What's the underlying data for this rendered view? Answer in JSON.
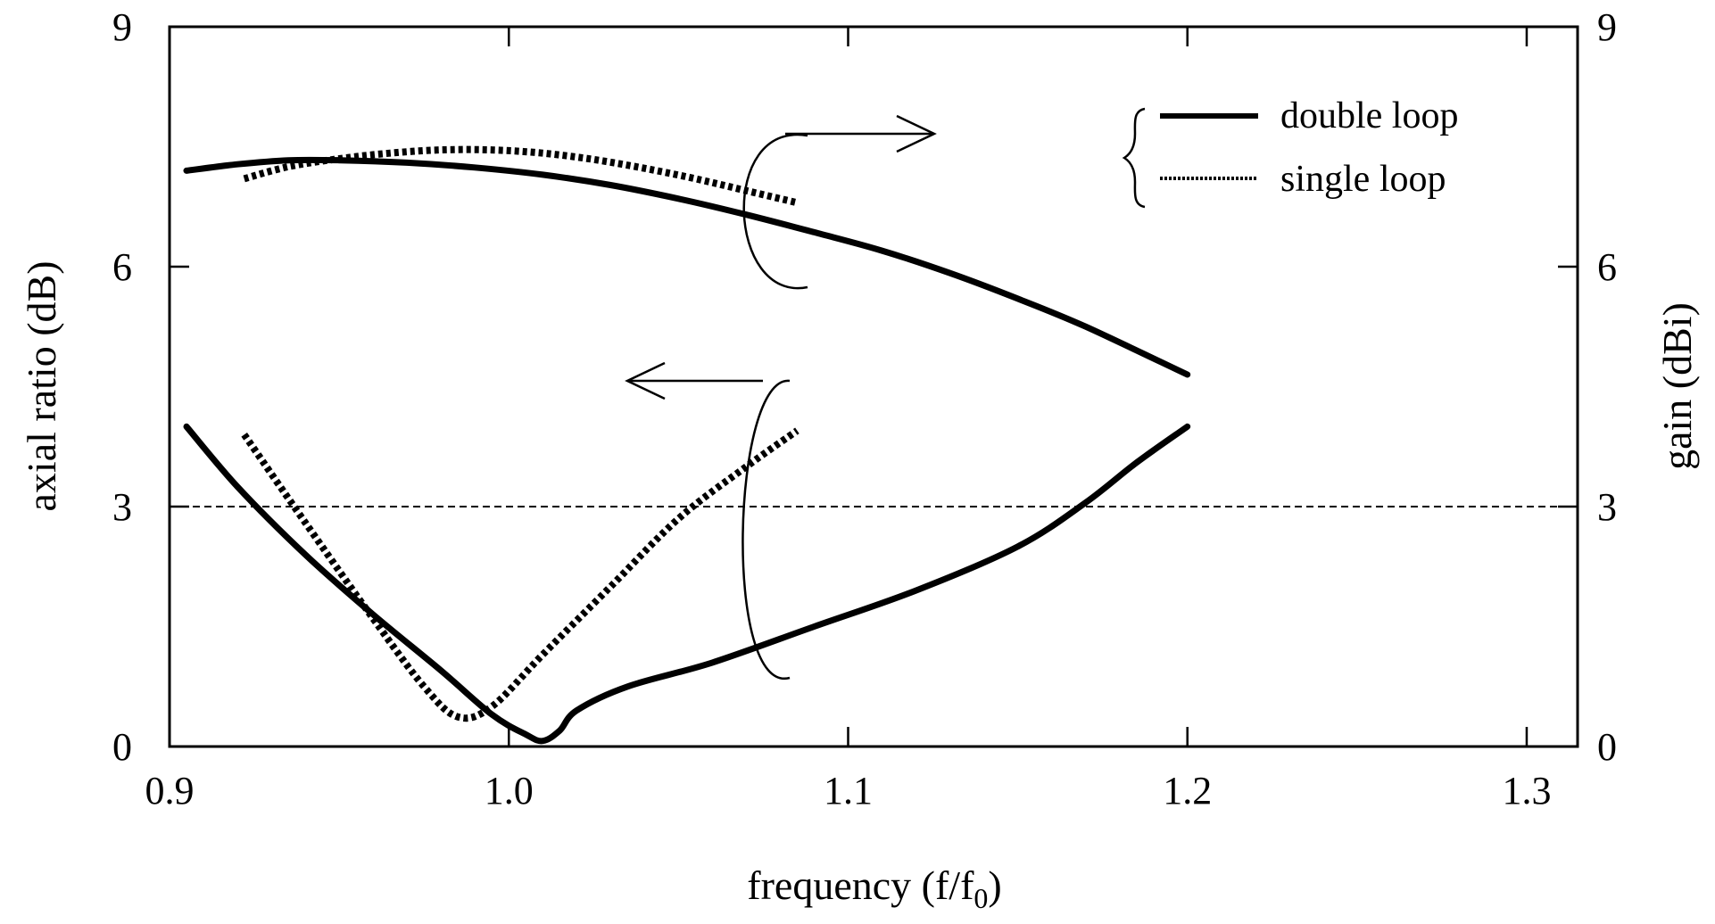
{
  "chart_data": {
    "type": "line",
    "title": "",
    "xlabel": "frequency  (f/f",
    "xlabel_sub": "0",
    "xlabel_close": ")",
    "ylabel_left": "axial ratio  (dB)",
    "ylabel_right": "gain  (dBi)",
    "xlim": [
      0.9,
      1.315
    ],
    "ylim_left": [
      0,
      9
    ],
    "ylim_right": [
      0,
      9
    ],
    "x_ticks": [
      "0.9",
      "1.0",
      "1.1",
      "1.2",
      "1.3"
    ],
    "y_ticks_left": [
      "0",
      "3",
      "6",
      "9"
    ],
    "y_ticks_right": [
      "0",
      "3",
      "6",
      "9"
    ],
    "grid": false,
    "reference_line": {
      "axis": "left",
      "value": 3,
      "style": "dashed"
    },
    "legend": {
      "position": "top-right",
      "entries": [
        {
          "label": "double loop",
          "style": "solid"
        },
        {
          "label": "single loop",
          "style": "dotted"
        }
      ]
    },
    "series": [
      {
        "group": "gain",
        "axis": "right",
        "style": "solid",
        "x": [
          0.905,
          0.92,
          0.935,
          0.95,
          0.97,
          0.99,
          1.01,
          1.03,
          1.05,
          1.07,
          1.09,
          1.11,
          1.13,
          1.15,
          1.17,
          1.2
        ],
        "y": [
          7.2,
          7.28,
          7.33,
          7.33,
          7.3,
          7.24,
          7.15,
          7.02,
          6.85,
          6.65,
          6.43,
          6.2,
          5.92,
          5.6,
          5.25,
          4.65
        ]
      },
      {
        "group": "gain",
        "axis": "right",
        "style": "dotted",
        "x": [
          0.922,
          0.935,
          0.95,
          0.965,
          0.98,
          0.995,
          1.01,
          1.025,
          1.04,
          1.055,
          1.07,
          1.085
        ],
        "y": [
          7.1,
          7.25,
          7.35,
          7.42,
          7.46,
          7.46,
          7.42,
          7.34,
          7.23,
          7.1,
          6.95,
          6.8
        ]
      },
      {
        "group": "axial ratio",
        "axis": "left",
        "style": "solid",
        "x": [
          0.905,
          0.92,
          0.94,
          0.96,
          0.98,
          0.995,
          1.005,
          1.01,
          1.015,
          1.02,
          1.035,
          1.06,
          1.09,
          1.12,
          1.15,
          1.17,
          1.185,
          1.2
        ],
        "y": [
          4.0,
          3.25,
          2.4,
          1.65,
          0.95,
          0.4,
          0.15,
          0.07,
          0.2,
          0.45,
          0.75,
          1.05,
          1.5,
          1.95,
          2.5,
          3.05,
          3.55,
          4.0
        ]
      },
      {
        "group": "axial ratio",
        "axis": "left",
        "style": "dotted",
        "x": [
          0.922,
          0.94,
          0.96,
          0.975,
          0.985,
          0.995,
          1.01,
          1.03,
          1.05,
          1.07,
          1.085
        ],
        "y": [
          3.9,
          2.8,
          1.6,
          0.75,
          0.37,
          0.5,
          1.15,
          2.0,
          2.85,
          3.5,
          3.95
        ]
      }
    ]
  }
}
